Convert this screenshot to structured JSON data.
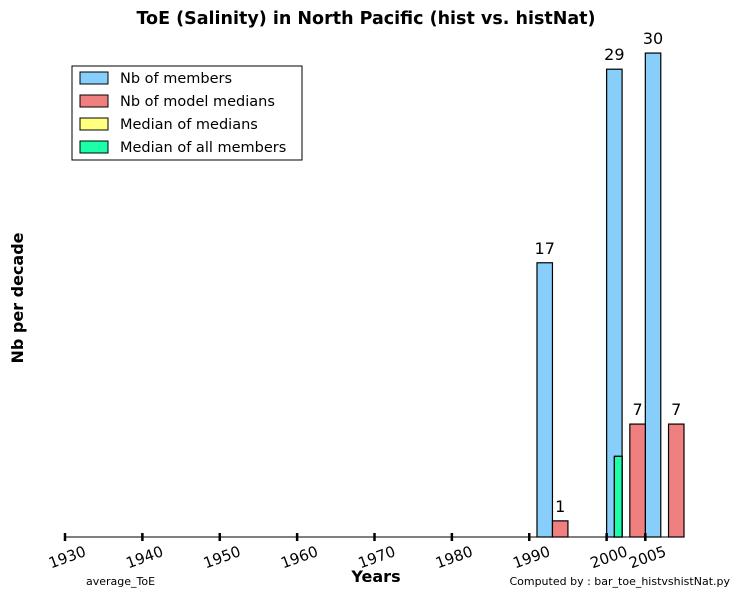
{
  "chart_data": {
    "type": "bar",
    "title": "ToE (Salinity) in North Pacific (hist vs. histNat)",
    "xlabel": "Years",
    "ylabel": "Nb per decade",
    "xlim": [
      1930,
      2010
    ],
    "ylim": [
      0,
      30.5
    ],
    "xticks": [
      "1930",
      "1940",
      "1950",
      "1960",
      "1970",
      "1980",
      "1990",
      "2000",
      "2005"
    ],
    "grid": false,
    "legend_position": "top-left",
    "series": [
      {
        "name": "Nb of members",
        "color": "#87cefa",
        "bars": [
          {
            "x": 1991,
            "width": 2,
            "value": 17
          },
          {
            "x": 2000,
            "width": 2,
            "value": 29
          },
          {
            "x": 2005,
            "width": 2,
            "value": 30
          }
        ],
        "labels": [
          "17",
          "29",
          "30"
        ]
      },
      {
        "name": "Nb of model medians",
        "color": "#f08080",
        "bars": [
          {
            "x": 1993,
            "width": 2,
            "value": 1
          },
          {
            "x": 2003,
            "width": 2,
            "value": 7
          },
          {
            "x": 2008,
            "width": 2,
            "value": 7
          }
        ],
        "labels": [
          "1",
          "7",
          "7"
        ]
      },
      {
        "name": "Median of medians",
        "color": "#ffff80",
        "bars": [
          {
            "x": 2001,
            "width": 1,
            "value": 5
          }
        ],
        "labels": []
      },
      {
        "name": "Median of all members",
        "color": "#1affa8",
        "bars": [
          {
            "x": 2001,
            "width": 1,
            "value": 5
          }
        ],
        "labels": []
      }
    ]
  },
  "footer": {
    "left": "average_ToE",
    "right": "Computed by : bar_toe_histvshistNat.py"
  }
}
